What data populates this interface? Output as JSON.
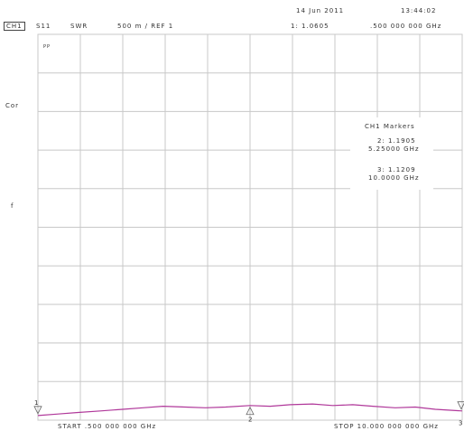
{
  "header": {
    "date": "14 Jun 2011",
    "time": "13:44:02",
    "channel": "CH1",
    "parameter": "S11",
    "format": "SWR",
    "scale": "500 m / REF 1",
    "active_marker_value": "1: 1.0605",
    "active_marker_freq": ".500 000 000 GHz"
  },
  "side_labels": {
    "pp": "PP",
    "cor": "Cor",
    "f": "f"
  },
  "markers_box": {
    "title": "CH1 Markers",
    "m2_value": "2: 1.1905",
    "m2_freq": "5.25000 GHz",
    "m3_value": "3: 1.1209",
    "m3_freq": "10.0000 GHz"
  },
  "footer": {
    "start": "START .500 000 000 GHz",
    "stop": "STOP 10.000 000 000 GHz"
  },
  "colors": {
    "trace": "#b0389a",
    "grid": "#c8c8c8",
    "text": "#333333"
  },
  "chart_data": {
    "type": "line",
    "title": "",
    "xlabel": "",
    "ylabel": "",
    "x_unit": "GHz",
    "xlim": [
      0.5,
      10.0
    ],
    "ylim": [
      1.0,
      6.0
    ],
    "y_per_div": 0.5,
    "reference": 1.0,
    "grid": true,
    "series": [
      {
        "x": [
          0.5,
          0.95,
          1.4,
          1.9,
          2.4,
          2.85,
          3.3,
          3.8,
          4.25,
          4.7,
          5.25,
          5.7,
          6.15,
          6.65,
          7.1,
          7.55,
          8.0,
          8.5,
          8.95,
          9.4,
          10.0
        ],
        "y": [
          1.06,
          1.08,
          1.1,
          1.12,
          1.14,
          1.16,
          1.18,
          1.17,
          1.16,
          1.17,
          1.19,
          1.18,
          1.2,
          1.21,
          1.19,
          1.2,
          1.18,
          1.16,
          1.17,
          1.14,
          1.12
        ]
      }
    ],
    "markers": [
      {
        "label": "1",
        "x": 0.5,
        "y": 1.0605
      },
      {
        "label": "2",
        "x": 5.25,
        "y": 1.1905
      },
      {
        "label": "3",
        "x": 10.0,
        "y": 1.1209
      }
    ]
  }
}
